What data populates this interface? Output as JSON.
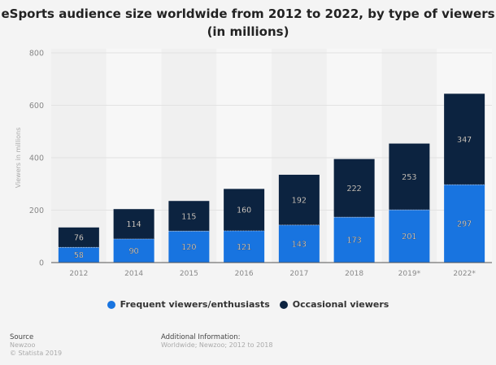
{
  "chart_data": {
    "type": "bar",
    "stacked": true,
    "title": "eSports audience size worldwide from 2012 to 2022, by type of viewers (in millions)",
    "xlabel": "",
    "ylabel": "Viewers in millions",
    "ylim": [
      0,
      800
    ],
    "yticks": [
      0,
      200,
      400,
      600,
      800
    ],
    "grid": true,
    "legend_position": "bottom",
    "categories": [
      "2012",
      "2014",
      "2015",
      "2016",
      "2017",
      "2018",
      "2019*",
      "2022*"
    ],
    "series": [
      {
        "name": "Frequent viewers/enthusiasts",
        "color": "#1874e0",
        "values": [
          58,
          90,
          120,
          121,
          143,
          173,
          201,
          297
        ]
      },
      {
        "name": "Occasional viewers",
        "color": "#0c2340",
        "values": [
          76,
          114,
          115,
          160,
          192,
          222,
          253,
          347
        ]
      }
    ]
  },
  "footer": {
    "source_label": "Source",
    "source_name": "Newzoo",
    "copyright": "© Statista 2019",
    "additional_label": "Additional Information:",
    "additional_text": "Worldwide; Newzoo; 2012 to 2018"
  }
}
